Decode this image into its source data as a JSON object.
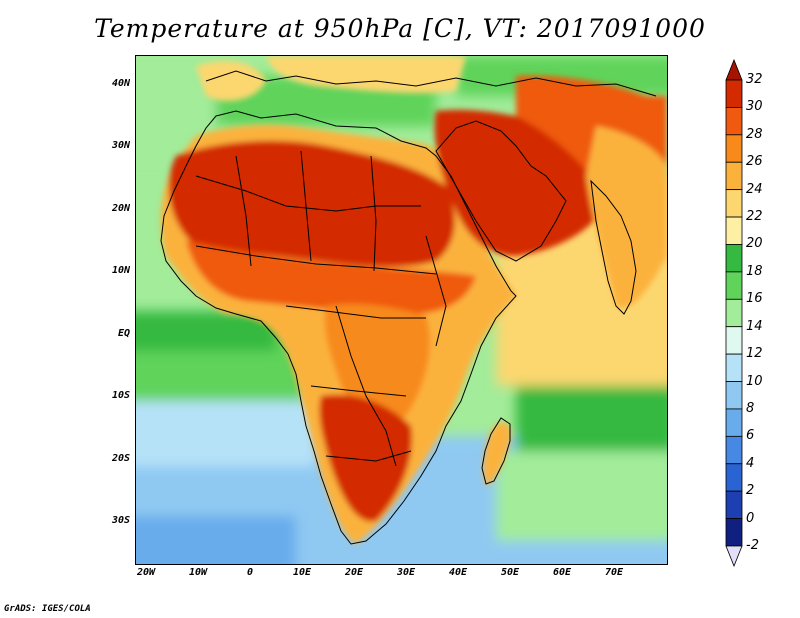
{
  "title": "Temperature at 950hPa [C], VT: 2017091000",
  "credit": "GrADS: IGES/COLA",
  "latitude_labels": [
    "40N",
    "30N",
    "20N",
    "10N",
    "EQ",
    "10S",
    "20S",
    "30S"
  ],
  "longitude_labels": [
    "20W",
    "10W",
    "0",
    "10E",
    "20E",
    "30E",
    "40E",
    "50E",
    "60E",
    "70E"
  ],
  "colorbar": {
    "labels": [
      "32",
      "30",
      "28",
      "26",
      "24",
      "22",
      "20",
      "18",
      "16",
      "14",
      "12",
      "10",
      "8",
      "6",
      "4",
      "2",
      "0",
      "-2"
    ],
    "colors": [
      "#a41400",
      "#d32a00",
      "#ef5a10",
      "#f78a1a",
      "#fbb23c",
      "#fcd770",
      "#fdf0a4",
      "#35b940",
      "#5fd35a",
      "#a2ec9a",
      "#dff8f0",
      "#b6e2f8",
      "#8fc9f2",
      "#68acec",
      "#4789e2",
      "#2a63d2",
      "#1d3fb2",
      "#102080",
      "#e2e0f8"
    ]
  },
  "map_colors": {
    "ocean_cool": "#8fc9f2",
    "ocean_mild": "#b6e2f8",
    "ocean_warm": "#a2ec9a",
    "ocean_tropical": "#35b940",
    "land_hot": "#d32a00",
    "land_warm": "#f78a1a",
    "indian_ocean": "#fcd770",
    "border": "#000000"
  }
}
